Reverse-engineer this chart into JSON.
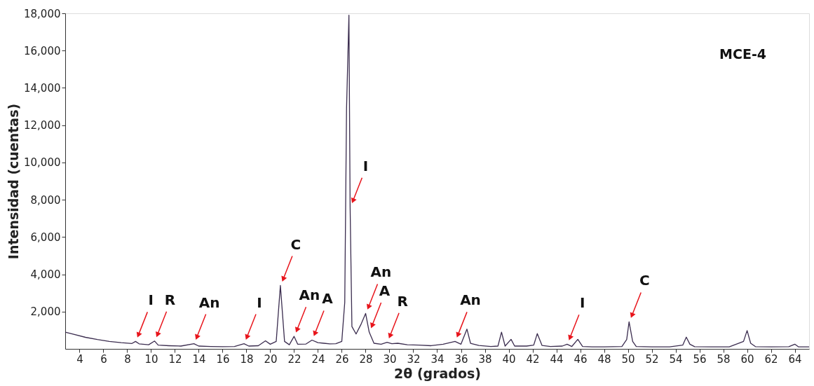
{
  "chart_data": {
    "type": "line",
    "xlabel": "2θ (grados)",
    "ylabel": "Intensidad (cuentas)",
    "xlim": [
      2.8,
      65.2
    ],
    "ylim": [
      0,
      18000
    ],
    "xticks": [
      4,
      6,
      8,
      10,
      12,
      14,
      16,
      18,
      20,
      22,
      24,
      26,
      28,
      30,
      32,
      34,
      36,
      38,
      40,
      42,
      44,
      46,
      48,
      50,
      52,
      54,
      56,
      58,
      60,
      62,
      64
    ],
    "yticks": [
      {
        "value": 2000,
        "label": "2,000"
      },
      {
        "value": 4000,
        "label": "4,000"
      },
      {
        "value": 6000,
        "label": "6,000"
      },
      {
        "value": 8000,
        "label": "8,000"
      },
      {
        "value": 10000,
        "label": "10,000"
      },
      {
        "value": 12000,
        "label": "12,000"
      },
      {
        "value": 14000,
        "label": "14,000"
      },
      {
        "value": 16000,
        "label": "16,000"
      },
      {
        "value": 18000,
        "label": "18,000"
      }
    ],
    "grid": false,
    "legend": false,
    "marker": "none",
    "line_style": "solid",
    "series": [
      {
        "color": "#3b2d4f",
        "x": [
          2.8,
          3.5,
          4.5,
          5.5,
          6.5,
          7.5,
          8.4,
          8.7,
          9.0,
          9.8,
          10.3,
          10.6,
          11.5,
          12.5,
          13.6,
          14.0,
          15,
          16,
          17,
          17.8,
          18.2,
          19.0,
          19.6,
          20.0,
          20.5,
          20.85,
          21.2,
          21.6,
          22.0,
          22.3,
          23.0,
          23.5,
          24.0,
          24.5,
          25.0,
          25.5,
          26.0,
          26.25,
          26.4,
          26.6,
          26.7,
          26.85,
          27.2,
          27.6,
          28.0,
          28.3,
          28.7,
          29.3,
          29.8,
          30.2,
          30.7,
          31.5,
          32.5,
          33.5,
          34.5,
          35.5,
          36.0,
          36.5,
          36.8,
          37.5,
          38.5,
          39.1,
          39.4,
          39.7,
          40.2,
          40.5,
          41.5,
          42.1,
          42.4,
          42.8,
          43.5,
          44.5,
          44.9,
          45.3,
          45.8,
          46.2,
          47,
          48,
          49.5,
          49.9,
          50.1,
          50.4,
          50.7,
          52,
          53.5,
          54.6,
          54.9,
          55.2,
          55.6,
          57,
          58.5,
          59.7,
          60.0,
          60.3,
          60.7,
          62,
          63.5,
          64.0,
          64.3,
          65.2
        ],
        "values": [
          900,
          780,
          620,
          500,
          400,
          330,
          290,
          400,
          270,
          220,
          420,
          200,
          170,
          150,
          280,
          150,
          130,
          120,
          130,
          280,
          150,
          170,
          430,
          250,
          400,
          3400,
          400,
          220,
          670,
          250,
          260,
          470,
          330,
          300,
          270,
          280,
          400,
          2500,
          12900,
          17900,
          7600,
          1200,
          800,
          1300,
          1900,
          900,
          300,
          250,
          350,
          280,
          300,
          220,
          200,
          170,
          250,
          400,
          250,
          1060,
          300,
          180,
          130,
          150,
          900,
          150,
          510,
          150,
          150,
          200,
          820,
          180,
          130,
          150,
          250,
          130,
          510,
          130,
          110,
          110,
          130,
          500,
          1450,
          400,
          130,
          110,
          110,
          200,
          630,
          250,
          120,
          110,
          110,
          400,
          980,
          300,
          120,
          110,
          120,
          250,
          110,
          110
        ]
      }
    ],
    "annotations": [
      {
        "text": "I",
        "x": 8.7,
        "y": 400
      },
      {
        "text": "R",
        "x": 10.3,
        "y": 420
      },
      {
        "text": "An",
        "x": 13.6,
        "y": 280
      },
      {
        "text": "I",
        "x": 17.8,
        "y": 280
      },
      {
        "text": "C",
        "x": 20.85,
        "y": 3400
      },
      {
        "text": "An",
        "x": 22.0,
        "y": 670
      },
      {
        "text": "A",
        "x": 23.5,
        "y": 470
      },
      {
        "text": "I",
        "x": 26.7,
        "y": 7600
      },
      {
        "text": "An",
        "x": 28.0,
        "y": 1900
      },
      {
        "text": "A",
        "x": 28.3,
        "y": 900
      },
      {
        "text": "R",
        "x": 29.8,
        "y": 350
      },
      {
        "text": "An",
        "x": 35.5,
        "y": 400
      },
      {
        "text": "I",
        "x": 44.9,
        "y": 250
      },
      {
        "text": "C",
        "x": 50.1,
        "y": 1450
      },
      "MCE-4"
    ]
  }
}
